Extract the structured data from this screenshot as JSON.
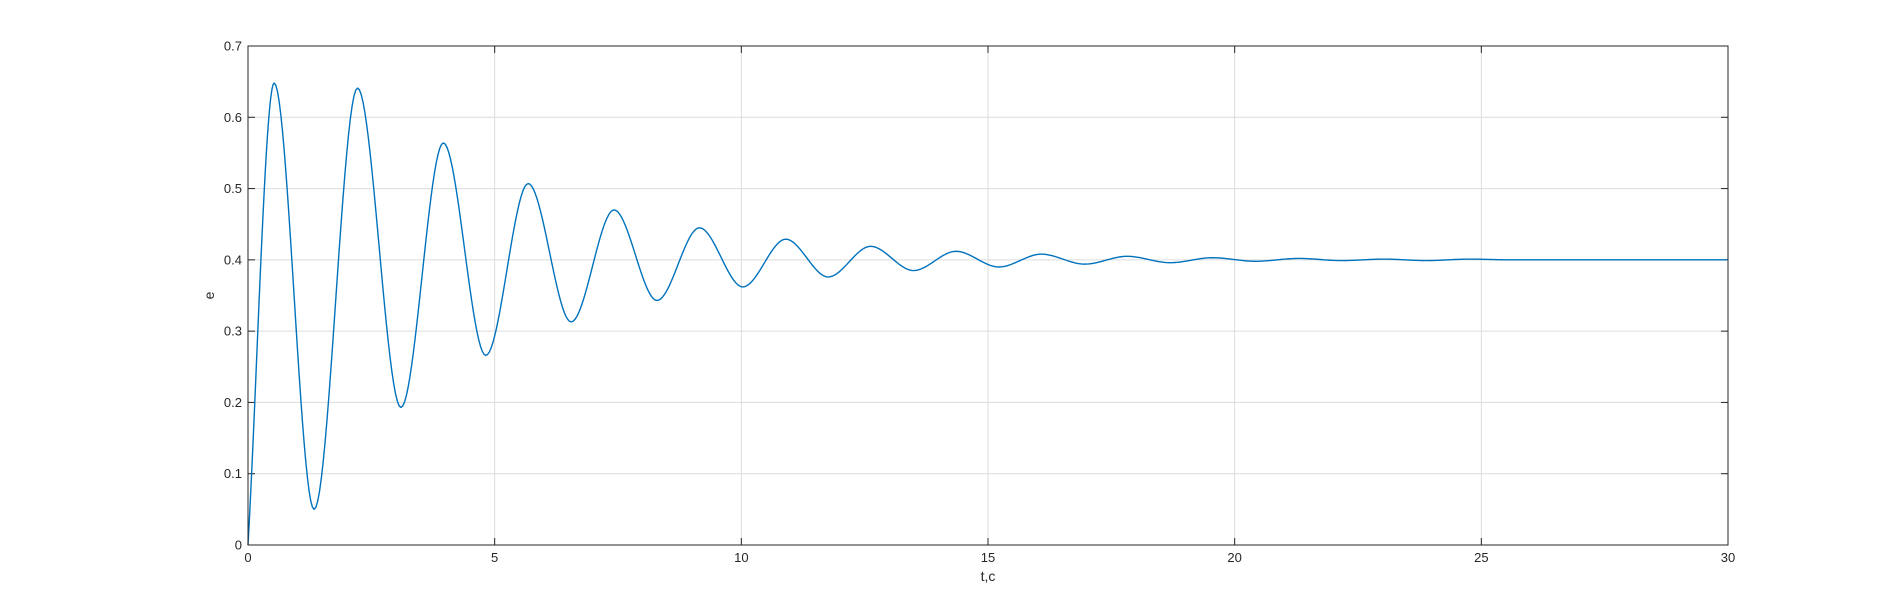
{
  "chart_data": {
    "type": "line",
    "title": "",
    "xlabel": "t,c",
    "ylabel": "e",
    "xlim": [
      0,
      30
    ],
    "ylim": [
      0,
      0.7
    ],
    "xticks": [
      0,
      5,
      10,
      15,
      20,
      25,
      30
    ],
    "yticks": [
      0,
      0.1,
      0.2,
      0.3,
      0.4,
      0.5,
      0.6,
      0.7
    ],
    "xtick_labels": [
      "0",
      "5",
      "10",
      "15",
      "20",
      "25",
      "30"
    ],
    "ytick_labels": [
      "0",
      "0.1",
      "0.2",
      "0.3",
      "0.4",
      "0.5",
      "0.6",
      "0.7"
    ],
    "grid": true,
    "legend": "none",
    "colors": {
      "line": "#0072BD",
      "axis": "#262626",
      "grid": "#dcdcdc"
    },
    "series": [
      {
        "points": [
          [
            0,
            0
          ],
          [
            0.53,
            0.648
          ],
          [
            1.34,
            0.05
          ],
          [
            2.22,
            0.641
          ],
          [
            3.1,
            0.193
          ],
          [
            3.96,
            0.564
          ],
          [
            4.82,
            0.266
          ],
          [
            5.68,
            0.507
          ],
          [
            6.55,
            0.313
          ],
          [
            7.42,
            0.47
          ],
          [
            8.29,
            0.343
          ],
          [
            9.15,
            0.445
          ],
          [
            10.03,
            0.362
          ],
          [
            10.9,
            0.429
          ],
          [
            11.76,
            0.376
          ],
          [
            12.62,
            0.419
          ],
          [
            13.49,
            0.385
          ],
          [
            14.35,
            0.412
          ],
          [
            15.22,
            0.39
          ],
          [
            16.08,
            0.408
          ],
          [
            16.96,
            0.394
          ],
          [
            17.82,
            0.405
          ],
          [
            18.69,
            0.396
          ],
          [
            19.55,
            0.403
          ],
          [
            20.42,
            0.398
          ],
          [
            21.3,
            0.402
          ],
          [
            22.16,
            0.399
          ],
          [
            23.03,
            0.401
          ],
          [
            23.89,
            0.399
          ],
          [
            24.76,
            0.401
          ],
          [
            25.62,
            0.4
          ],
          [
            26.49,
            0.4
          ],
          [
            27.36,
            0.4
          ],
          [
            28.22,
            0.4
          ],
          [
            29.09,
            0.4
          ],
          [
            30,
            0.4
          ]
        ]
      }
    ]
  }
}
